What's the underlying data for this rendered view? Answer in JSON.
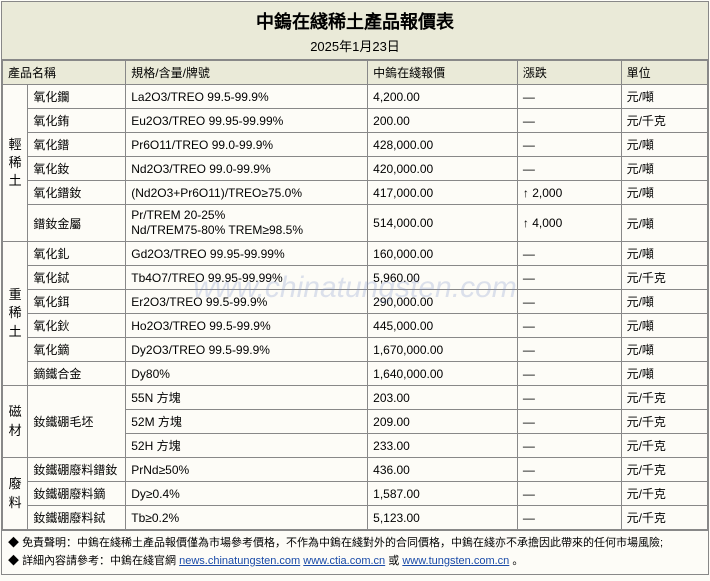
{
  "title": "中鎢在綫稀土產品報價表",
  "date": "2025年1月23日",
  "headers": {
    "name": "產品名稱",
    "spec": "規格/含量/牌號",
    "price": "中鎢在綫報價",
    "change": "漲跌",
    "unit": "單位"
  },
  "groups": [
    {
      "label": "輕稀土",
      "rows": [
        {
          "name": "氧化鑭",
          "spec": "La2O3/TREO 99.5-99.9%",
          "price": "4,200.00",
          "change": "—",
          "unit": "元/噸"
        },
        {
          "name": "氧化銪",
          "spec": "Eu2O3/TREO 99.95-99.99%",
          "price": "200.00",
          "change": "—",
          "unit": "元/千克"
        },
        {
          "name": "氧化鐠",
          "spec": "Pr6O11/TREO 99.0-99.9%",
          "price": "428,000.00",
          "change": "—",
          "unit": "元/噸"
        },
        {
          "name": "氧化釹",
          "spec": "Nd2O3/TREO 99.0-99.9%",
          "price": "420,000.00",
          "change": "—",
          "unit": "元/噸"
        },
        {
          "name": "氧化鐠釹",
          "spec": "(Nd2O3+Pr6O11)/TREO≥75.0%",
          "price": "417,000.00",
          "change": "↑ 2,000",
          "unit": "元/噸"
        },
        {
          "name": "鐠釹金屬",
          "spec": "Pr/TREM 20-25%\nNd/TREM75-80% TREM≥98.5%",
          "price": "514,000.00",
          "change": "↑ 4,000",
          "unit": "元/噸",
          "multi": true
        }
      ]
    },
    {
      "label": "重稀土",
      "rows": [
        {
          "name": "氧化釓",
          "spec": "Gd2O3/TREO 99.95-99.99%",
          "price": "160,000.00",
          "change": "—",
          "unit": "元/噸"
        },
        {
          "name": "氧化鋱",
          "spec": "Tb4O7/TREO 99.95-99.99%",
          "price": "5,960.00",
          "change": "—",
          "unit": "元/千克"
        },
        {
          "name": "氧化鉺",
          "spec": "Er2O3/TREO 99.5-99.9%",
          "price": "290,000.00",
          "change": "—",
          "unit": "元/噸"
        },
        {
          "name": "氧化鈥",
          "spec": "Ho2O3/TREO 99.5-99.9%",
          "price": "445,000.00",
          "change": "—",
          "unit": "元/噸"
        },
        {
          "name": "氧化鏑",
          "spec": "Dy2O3/TREO 99.5-99.9%",
          "price": "1,670,000.00",
          "change": "—",
          "unit": "元/噸"
        },
        {
          "name": "鏑鐵合金",
          "spec": "Dy80%",
          "price": "1,640,000.00",
          "change": "—",
          "unit": "元/噸"
        }
      ]
    },
    {
      "label": "磁材",
      "rows": [
        {
          "name": "釹鐵硼毛坯",
          "spec": "55N 方塊",
          "price": "203.00",
          "change": "—",
          "unit": "元/千克",
          "rowspan": 3
        },
        {
          "name": "",
          "spec": "52M 方塊",
          "price": "209.00",
          "change": "—",
          "unit": "元/千克"
        },
        {
          "name": "",
          "spec": "52H 方塊",
          "price": "233.00",
          "change": "—",
          "unit": "元/千克"
        }
      ]
    },
    {
      "label": "廢料",
      "rows": [
        {
          "name": "釹鐵硼廢料鐠釹",
          "spec": "PrNd≥50%",
          "price": "436.00",
          "change": "—",
          "unit": "元/千克"
        },
        {
          "name": "釹鐵硼廢料鏑",
          "spec": "Dy≥0.4%",
          "price": "1,587.00",
          "change": "—",
          "unit": "元/千克"
        },
        {
          "name": "釹鐵硼廢料鋱",
          "spec": "Tb≥0.2%",
          "price": "5,123.00",
          "change": "—",
          "unit": "元/千克"
        }
      ]
    }
  ],
  "footer": {
    "bullet": "◆",
    "line1_a": "免責聲明：中鎢在綫稀土產品報價僅為市場參考價格，不作為中鎢在綫對外的合同價格，中鎢在綫亦不承擔因此帶來的任何市場風險;",
    "line2_a": "詳細內容請參考：中鎢在綫官網 ",
    "link1": "news.chinatungsten.com",
    "mid": "  ",
    "link2": "www.ctia.com.cn",
    "or": " 或 ",
    "link3": "www.tungsten.com.cn",
    "end": "。"
  },
  "watermark": "www.chinatungsten.com",
  "colors": {
    "header_bg": "#eaead8",
    "body_bg": "#fdfcf7",
    "border": "#888888",
    "link": "#1a4ba8",
    "wm": "rgba(120,140,200,0.25)"
  }
}
